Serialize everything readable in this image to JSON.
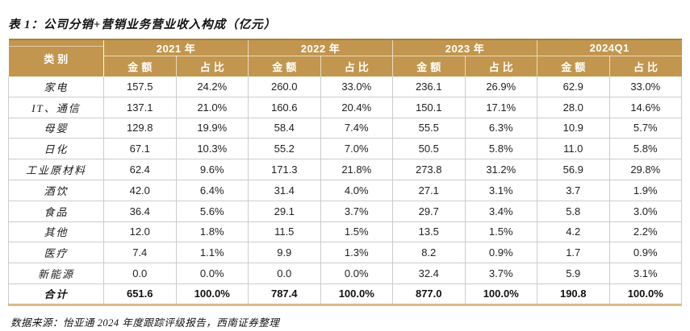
{
  "title": "表 1：公司分销+营销业务营业收入构成（亿元）",
  "footer": "数据来源：怡亚通 2024 年度跟踪评级报告，西南证券整理",
  "colors": {
    "header_bg": "#C2964E",
    "header_text": "#FFFFFF",
    "table_top_border": "#AA7F2E",
    "table_bottom_border": "#DCBB8C",
    "grid_line": "#CCCCCC"
  },
  "table": {
    "category_header": "类别",
    "year_groups": [
      {
        "label": "2021 年"
      },
      {
        "label": "2022 年"
      },
      {
        "label": "2023 年"
      },
      {
        "label": "2024Q1"
      }
    ],
    "sub_headers": [
      "金额",
      "占比"
    ],
    "rows": [
      {
        "category": "家电",
        "values": [
          "157.5",
          "24.2%",
          "260.0",
          "33.0%",
          "236.1",
          "26.9%",
          "62.9",
          "33.0%"
        ]
      },
      {
        "category": "IT、通信",
        "values": [
          "137.1",
          "21.0%",
          "160.6",
          "20.4%",
          "150.1",
          "17.1%",
          "28.0",
          "14.6%"
        ]
      },
      {
        "category": "母婴",
        "values": [
          "129.8",
          "19.9%",
          "58.4",
          "7.4%",
          "55.5",
          "6.3%",
          "10.9",
          "5.7%"
        ]
      },
      {
        "category": "日化",
        "values": [
          "67.1",
          "10.3%",
          "55.2",
          "7.0%",
          "50.5",
          "5.8%",
          "11.0",
          "5.8%"
        ]
      },
      {
        "category": "工业原材料",
        "values": [
          "62.4",
          "9.6%",
          "171.3",
          "21.8%",
          "273.8",
          "31.2%",
          "56.9",
          "29.8%"
        ]
      },
      {
        "category": "酒饮",
        "values": [
          "42.0",
          "6.4%",
          "31.4",
          "4.0%",
          "27.1",
          "3.1%",
          "3.7",
          "1.9%"
        ]
      },
      {
        "category": "食品",
        "values": [
          "36.4",
          "5.6%",
          "29.1",
          "3.7%",
          "29.7",
          "3.4%",
          "5.8",
          "3.0%"
        ]
      },
      {
        "category": "其他",
        "values": [
          "12.0",
          "1.8%",
          "11.5",
          "1.5%",
          "13.5",
          "1.5%",
          "4.2",
          "2.2%"
        ]
      },
      {
        "category": "医疗",
        "values": [
          "7.4",
          "1.1%",
          "9.9",
          "1.3%",
          "8.2",
          "0.9%",
          "1.7",
          "0.9%"
        ]
      },
      {
        "category": "新能源",
        "values": [
          "0.0",
          "0.0%",
          "0.0",
          "0.0%",
          "32.4",
          "3.7%",
          "5.9",
          "3.1%"
        ]
      },
      {
        "category": "合计",
        "values": [
          "651.6",
          "100.0%",
          "787.4",
          "100.0%",
          "877.0",
          "100.0%",
          "190.8",
          "100.0%"
        ],
        "total": true
      }
    ]
  }
}
